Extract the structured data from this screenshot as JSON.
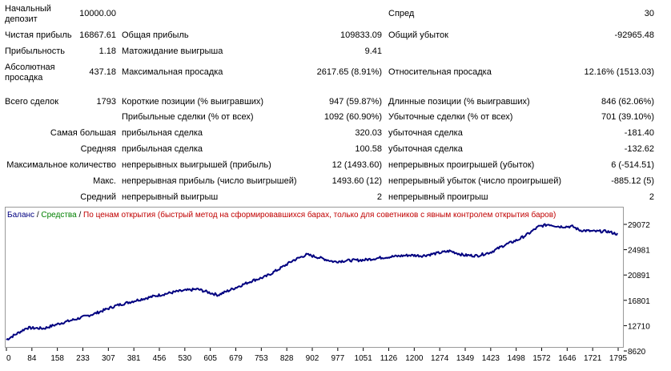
{
  "report": {
    "rows": [
      [
        {
          "text": "Начальный\nдепозит",
          "x": 6,
          "y": 5,
          "w": 80,
          "lines": 2
        },
        {
          "text": "10000.00",
          "x": 70,
          "y": 11,
          "w": 75,
          "align": "right"
        },
        {
          "text": "Спред",
          "x": 485,
          "y": 11,
          "w": 80
        },
        {
          "text": "30",
          "x": 760,
          "y": 11,
          "w": 57,
          "align": "right"
        }
      ],
      [
        {
          "text": "Чистая прибыль",
          "x": 6,
          "y": 38,
          "w": 90
        },
        {
          "text": "16867.61",
          "x": 80,
          "y": 38,
          "w": 65,
          "align": "right"
        },
        {
          "text": "Общая прибыль",
          "x": 152,
          "y": 38,
          "w": 120
        },
        {
          "text": "109833.09",
          "x": 380,
          "y": 38,
          "w": 97,
          "align": "right"
        },
        {
          "text": "Общий убыток",
          "x": 485,
          "y": 38,
          "w": 120
        },
        {
          "text": "-92965.48",
          "x": 720,
          "y": 38,
          "w": 97,
          "align": "right"
        }
      ],
      [
        {
          "text": "Прибыльность",
          "x": 6,
          "y": 58,
          "w": 90
        },
        {
          "text": "1.18",
          "x": 80,
          "y": 58,
          "w": 65,
          "align": "right"
        },
        {
          "text": "Матожидание выигрыша",
          "x": 152,
          "y": 58,
          "w": 160
        },
        {
          "text": "9.41",
          "x": 380,
          "y": 58,
          "w": 97,
          "align": "right"
        }
      ],
      [
        {
          "text": "Абсолютная\nпросадка",
          "x": 6,
          "y": 78,
          "w": 80,
          "lines": 2
        },
        {
          "text": "437.18",
          "x": 80,
          "y": 84,
          "w": 65,
          "align": "right"
        },
        {
          "text": "Максимальная просадка",
          "x": 152,
          "y": 84,
          "w": 160
        },
        {
          "text": "2617.65 (8.91%)",
          "x": 360,
          "y": 84,
          "w": 117,
          "align": "right"
        },
        {
          "text": "Относительная просадка",
          "x": 485,
          "y": 84,
          "w": 160
        },
        {
          "text": "12.16% (1513.03)",
          "x": 700,
          "y": 84,
          "w": 117,
          "align": "right"
        }
      ],
      [
        {
          "text": "Всего сделок",
          "x": 6,
          "y": 121,
          "w": 90
        },
        {
          "text": "1793",
          "x": 80,
          "y": 121,
          "w": 65,
          "align": "right"
        },
        {
          "text": "Короткие позиции (% выигравших)",
          "x": 152,
          "y": 121,
          "w": 220
        },
        {
          "text": "947 (59.87%)",
          "x": 380,
          "y": 121,
          "w": 97,
          "align": "right"
        },
        {
          "text": "Длинные позиции (% выигравших)",
          "x": 485,
          "y": 121,
          "w": 220
        },
        {
          "text": "846 (62.06%)",
          "x": 720,
          "y": 121,
          "w": 97,
          "align": "right"
        }
      ],
      [
        {
          "text": "Прибыльные сделки (% от всех)",
          "x": 152,
          "y": 140,
          "w": 220
        },
        {
          "text": "1092 (60.90%)",
          "x": 380,
          "y": 140,
          "w": 97,
          "align": "right"
        },
        {
          "text": "Убыточные сделки (% от всех)",
          "x": 485,
          "y": 140,
          "w": 220
        },
        {
          "text": "701 (39.10%)",
          "x": 720,
          "y": 140,
          "w": 97,
          "align": "right"
        }
      ],
      [
        {
          "text": "Самая большая",
          "x": 40,
          "y": 160,
          "w": 105,
          "align": "right"
        },
        {
          "text": "прибыльная сделка",
          "x": 152,
          "y": 160,
          "w": 200
        },
        {
          "text": "320.03",
          "x": 380,
          "y": 160,
          "w": 97,
          "align": "right"
        },
        {
          "text": "убыточная сделка",
          "x": 485,
          "y": 160,
          "w": 200
        },
        {
          "text": "-181.40",
          "x": 720,
          "y": 160,
          "w": 97,
          "align": "right"
        }
      ],
      [
        {
          "text": "Средняя",
          "x": 40,
          "y": 180,
          "w": 105,
          "align": "right"
        },
        {
          "text": "прибыльная сделка",
          "x": 152,
          "y": 180,
          "w": 200
        },
        {
          "text": "100.58",
          "x": 380,
          "y": 180,
          "w": 97,
          "align": "right"
        },
        {
          "text": "убыточная сделка",
          "x": 485,
          "y": 180,
          "w": 200
        },
        {
          "text": "-132.62",
          "x": 720,
          "y": 180,
          "w": 97,
          "align": "right"
        }
      ],
      [
        {
          "text": "Максимальное количество",
          "x": 6,
          "y": 200,
          "w": 139,
          "align": "right"
        },
        {
          "text": "непрерывных выигрышей (прибыль)",
          "x": 152,
          "y": 200,
          "w": 220
        },
        {
          "text": "12 (1493.60)",
          "x": 380,
          "y": 200,
          "w": 97,
          "align": "right"
        },
        {
          "text": "непрерывных проигрышей (убыток)",
          "x": 485,
          "y": 200,
          "w": 220
        },
        {
          "text": "6 (-514.51)",
          "x": 720,
          "y": 200,
          "w": 97,
          "align": "right"
        }
      ],
      [
        {
          "text": "Макс.",
          "x": 40,
          "y": 220,
          "w": 105,
          "align": "right"
        },
        {
          "text": "непрерывная прибыль (число выигрышей)",
          "x": 152,
          "y": 220,
          "w": 240
        },
        {
          "text": "1493.60 (12)",
          "x": 380,
          "y": 220,
          "w": 97,
          "align": "right"
        },
        {
          "text": "непрерывный убыток (число проигрышей)",
          "x": 485,
          "y": 220,
          "w": 240
        },
        {
          "text": "-885.12 (5)",
          "x": 720,
          "y": 220,
          "w": 97,
          "align": "right"
        }
      ],
      [
        {
          "text": "Средний",
          "x": 40,
          "y": 240,
          "w": 105,
          "align": "right"
        },
        {
          "text": "непрерывный выигрыш",
          "x": 152,
          "y": 240,
          "w": 200
        },
        {
          "text": "2",
          "x": 380,
          "y": 240,
          "w": 97,
          "align": "right"
        },
        {
          "text": "непрерывный проигрыш",
          "x": 485,
          "y": 240,
          "w": 200
        },
        {
          "text": "2",
          "x": 720,
          "y": 240,
          "w": 97,
          "align": "right"
        }
      ]
    ]
  },
  "legend": {
    "balance": "Баланс",
    "sep1": " / ",
    "equity": "Средства",
    "sep2": " / ",
    "note": "По ценам открытия (быстрый метод на сформировавшихся барах, только для советников с явным контролем открытия баров)"
  },
  "chart_data": {
    "type": "line",
    "series": [
      {
        "name": "Баланс",
        "color": "#000080"
      }
    ],
    "x_ticks": [
      "0",
      "84",
      "158",
      "233",
      "307",
      "381",
      "456",
      "530",
      "605",
      "679",
      "753",
      "828",
      "902",
      "977",
      "1051",
      "1126",
      "1200",
      "1274",
      "1349",
      "1423",
      "1498",
      "1572",
      "1646",
      "1721",
      "1795"
    ],
    "y_ticks": [
      "29072",
      "24981",
      "20891",
      "16801",
      "12710",
      "8620"
    ],
    "xlim": [
      0,
      1793
    ],
    "ylim": [
      8620,
      29072
    ],
    "anchors": [
      [
        0,
        9700
      ],
      [
        30,
        10700
      ],
      [
        60,
        11700
      ],
      [
        110,
        11600
      ],
      [
        160,
        12500
      ],
      [
        200,
        13100
      ],
      [
        260,
        14100
      ],
      [
        320,
        15400
      ],
      [
        380,
        16300
      ],
      [
        440,
        17100
      ],
      [
        500,
        17800
      ],
      [
        560,
        18200
      ],
      [
        620,
        17200
      ],
      [
        670,
        18400
      ],
      [
        720,
        19600
      ],
      [
        760,
        20300
      ],
      [
        800,
        21600
      ],
      [
        840,
        23000
      ],
      [
        880,
        24000
      ],
      [
        910,
        23600
      ],
      [
        960,
        22800
      ],
      [
        1000,
        23000
      ],
      [
        1050,
        23100
      ],
      [
        1100,
        23500
      ],
      [
        1140,
        23700
      ],
      [
        1180,
        23900
      ],
      [
        1220,
        23800
      ],
      [
        1260,
        24200
      ],
      [
        1300,
        24600
      ],
      [
        1340,
        23900
      ],
      [
        1380,
        23800
      ],
      [
        1420,
        24400
      ],
      [
        1460,
        25600
      ],
      [
        1500,
        26500
      ],
      [
        1530,
        27500
      ],
      [
        1560,
        28700
      ],
      [
        1590,
        29072
      ],
      [
        1620,
        28700
      ],
      [
        1660,
        28700
      ],
      [
        1680,
        28100
      ],
      [
        1720,
        27900
      ],
      [
        1760,
        27900
      ],
      [
        1793,
        27400
      ]
    ]
  }
}
